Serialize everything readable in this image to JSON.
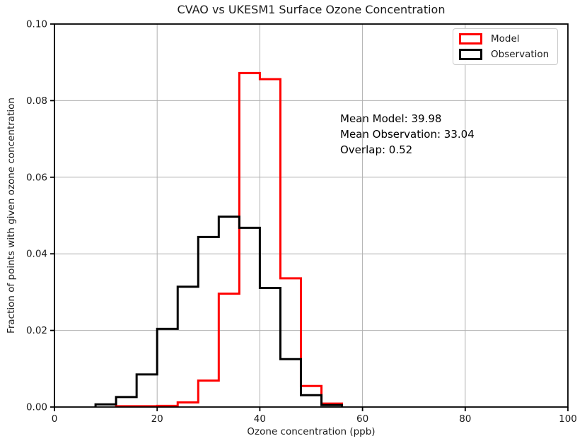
{
  "chart_data": {
    "type": "step-histogram",
    "title": "CVAO vs UKESM1 Surface Ozone Concentration",
    "xlabel": "Ozone concentration (ppb)",
    "ylabel": "Fraction of points with given ozone concentration",
    "xlim": [
      0,
      100
    ],
    "ylim": [
      0,
      0.1
    ],
    "x_ticks": [
      {
        "value": 0,
        "label": "0"
      },
      {
        "value": 20,
        "label": "20"
      },
      {
        "value": 40,
        "label": "40"
      },
      {
        "value": 60,
        "label": "60"
      },
      {
        "value": 80,
        "label": "80"
      },
      {
        "value": 100,
        "label": "100"
      }
    ],
    "y_ticks": [
      {
        "value": 0.0,
        "label": "0.00"
      },
      {
        "value": 0.02,
        "label": "0.02"
      },
      {
        "value": 0.04,
        "label": "0.04"
      },
      {
        "value": 0.06,
        "label": "0.06"
      },
      {
        "value": 0.08,
        "label": "0.08"
      },
      {
        "value": 0.1,
        "label": "0.10"
      }
    ],
    "grid": true,
    "bin_width": 4,
    "series": [
      {
        "name": "Model",
        "color": "#ff0000",
        "bin_start": 12,
        "bin_edges": [
          12,
          16,
          20,
          24,
          28,
          32,
          36,
          40,
          44,
          48,
          52,
          56
        ],
        "values": [
          0.0002,
          0.0002,
          0.0003,
          0.0012,
          0.0069,
          0.0296,
          0.0872,
          0.0856,
          0.0336,
          0.0055,
          0.0009
        ]
      },
      {
        "name": "Observation",
        "color": "#000000",
        "bin_start": 8,
        "bin_edges": [
          8,
          12,
          16,
          20,
          24,
          28,
          32,
          36,
          40,
          44,
          48,
          52,
          56
        ],
        "values": [
          0.0007,
          0.0026,
          0.0085,
          0.0204,
          0.0314,
          0.0444,
          0.0497,
          0.0468,
          0.0311,
          0.0125,
          0.0031,
          0.0005
        ]
      }
    ],
    "legend": {
      "position": "upper right",
      "entries": [
        {
          "label": "Model",
          "color": "#ff0000"
        },
        {
          "label": "Observation",
          "color": "#000000"
        }
      ]
    },
    "annotation": {
      "lines": [
        "Mean Model: 39.98",
        "Mean Observation: 33.04",
        "Overlap: 0.52"
      ]
    },
    "colors": {
      "grid": "#b0b0b0",
      "spine": "#000000",
      "background": "#ffffff",
      "series_model": "#ff0000",
      "series_observation": "#000000"
    }
  }
}
